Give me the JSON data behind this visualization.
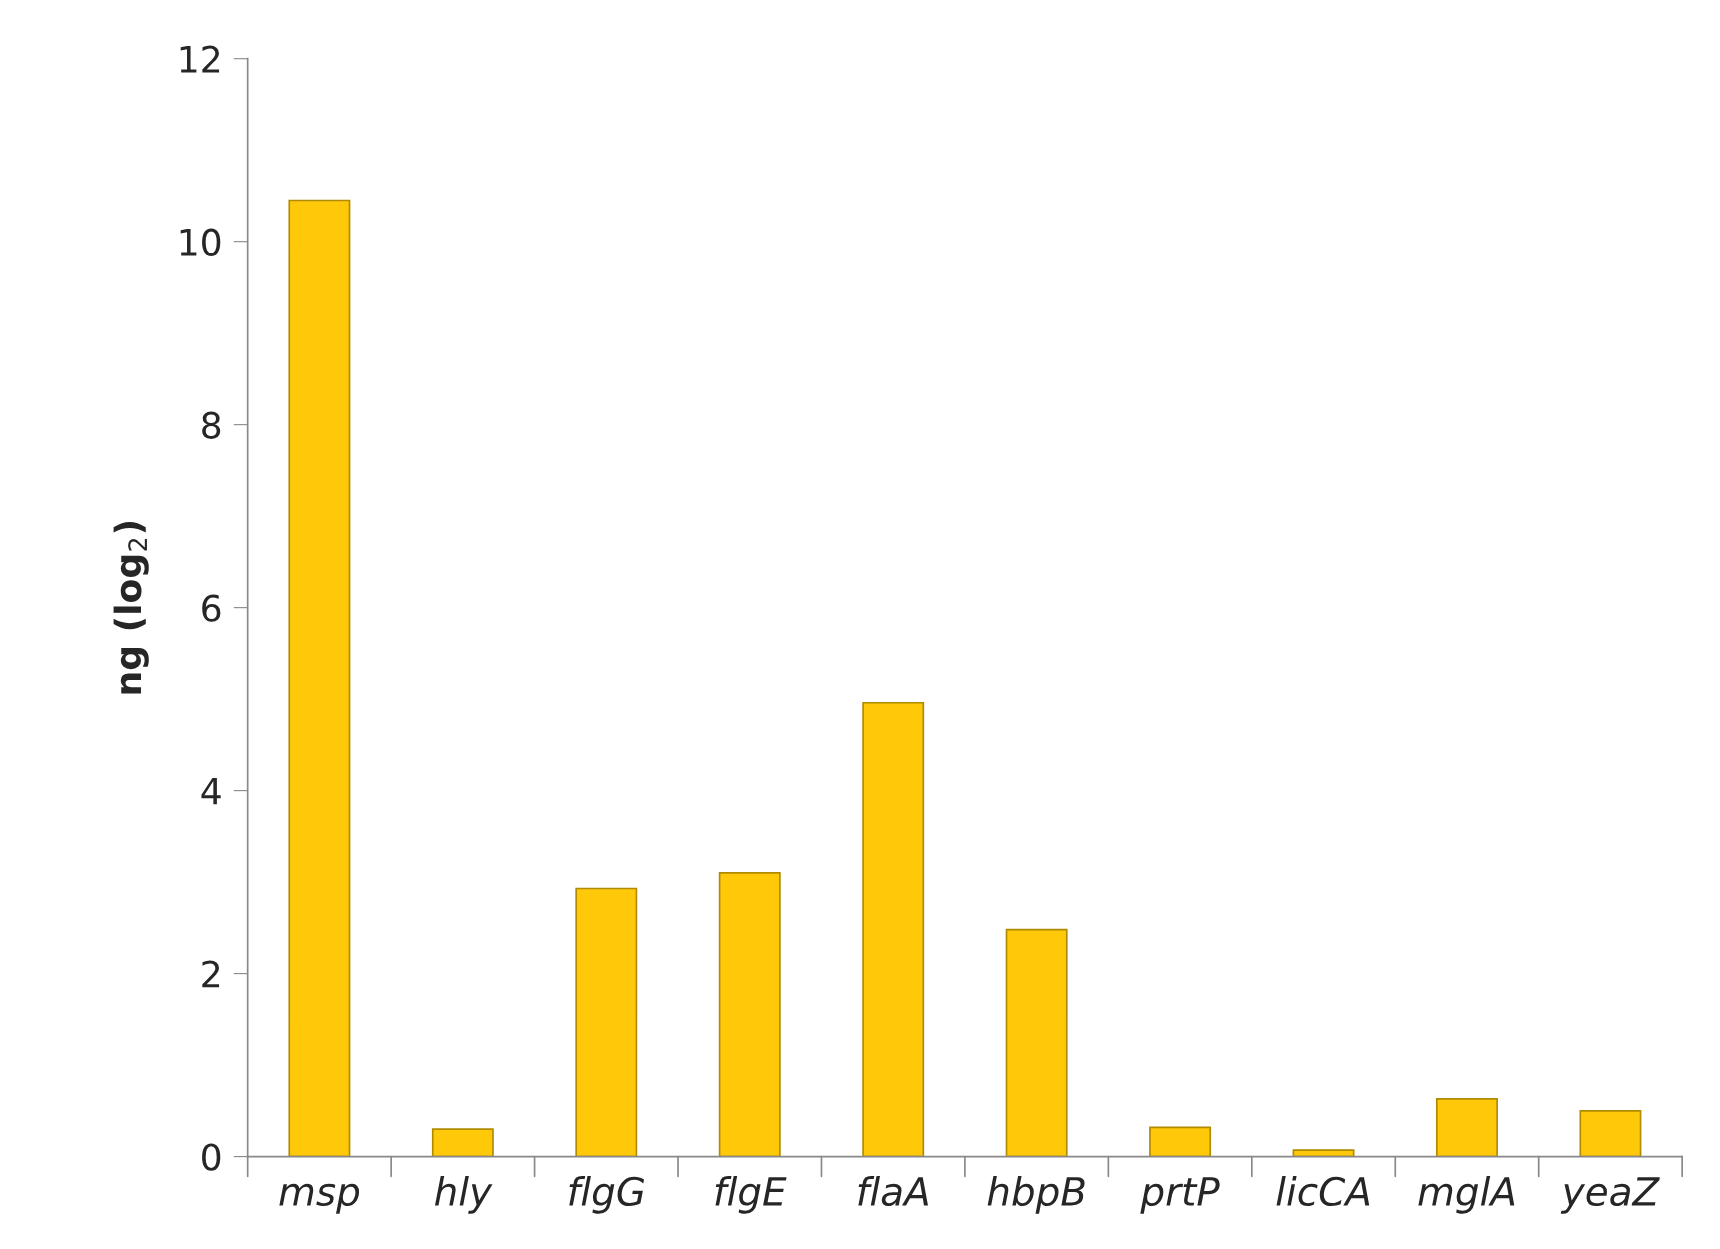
{
  "chart_data": {
    "type": "bar",
    "ylabel": "ng (log$_{2}$)",
    "categories": [
      "msp",
      "hly",
      "flgG",
      "flgE",
      "flaA",
      "hbpB",
      "prtP",
      "licCA",
      "mglA",
      "yeaZ"
    ],
    "values": [
      10.45,
      0.3,
      2.93,
      3.1,
      4.96,
      2.48,
      0.32,
      0.07,
      0.63,
      0.5
    ],
    "color": "#ffc90a",
    "ylim": [
      0,
      12
    ],
    "yticks": [
      0,
      2,
      4,
      6,
      8,
      10,
      12
    ],
    "grid": false,
    "legend": false
  }
}
